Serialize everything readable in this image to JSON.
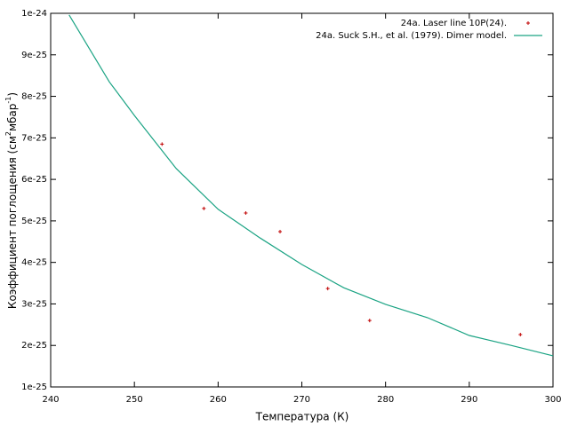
{
  "chart_data": {
    "type": "scatter-line",
    "x_label": "Температура (К)",
    "y_label": [
      "Коэффициент поглощения (см",
      "2",
      "мбар",
      "-1",
      ")"
    ],
    "xlim": [
      240,
      300
    ],
    "xticks": [
      240,
      250,
      260,
      270,
      280,
      290,
      300
    ],
    "ylim": [
      1e-25,
      1e-24
    ],
    "yticks": [
      {
        "value": 1e-25,
        "label": "1e-25"
      },
      {
        "value": 2e-25,
        "label": "2e-25"
      },
      {
        "value": 3e-25,
        "label": "3e-25"
      },
      {
        "value": 4e-25,
        "label": "4e-25"
      },
      {
        "value": 5e-25,
        "label": "5e-25"
      },
      {
        "value": 6e-25,
        "label": "6e-25"
      },
      {
        "value": 7e-25,
        "label": "7e-25"
      },
      {
        "value": 8e-25,
        "label": "8e-25"
      },
      {
        "value": 9e-25,
        "label": "9e-25"
      },
      {
        "value": 1e-24,
        "label": "1e-24"
      }
    ],
    "legend": "top-right",
    "series": [
      {
        "name": "24a. Laser line 10P(24).",
        "kind": "points",
        "color": "#c00000",
        "x": [
          253.3,
          258.3,
          263.3,
          267.4,
          273.1,
          278.1,
          296.1
        ],
        "values": [
          6.85e-25,
          5.3e-25,
          5.19e-25,
          4.74e-25,
          3.37e-25,
          2.6e-25,
          2.26e-25
        ]
      },
      {
        "name": "24a. Suck S.H., et al. (1979). Dimer model.",
        "kind": "line",
        "color": "#1aa383",
        "x": [
          242.2,
          247,
          250,
          255,
          260,
          265,
          270,
          275,
          280,
          285,
          290,
          295,
          300
        ],
        "values": [
          9.96e-25,
          8.35e-25,
          7.54e-25,
          6.26e-25,
          5.28e-25,
          4.59e-25,
          3.95e-25,
          3.39e-25,
          2.99e-25,
          2.67e-25,
          2.24e-25,
          2e-25,
          1.75e-25
        ]
      }
    ]
  }
}
